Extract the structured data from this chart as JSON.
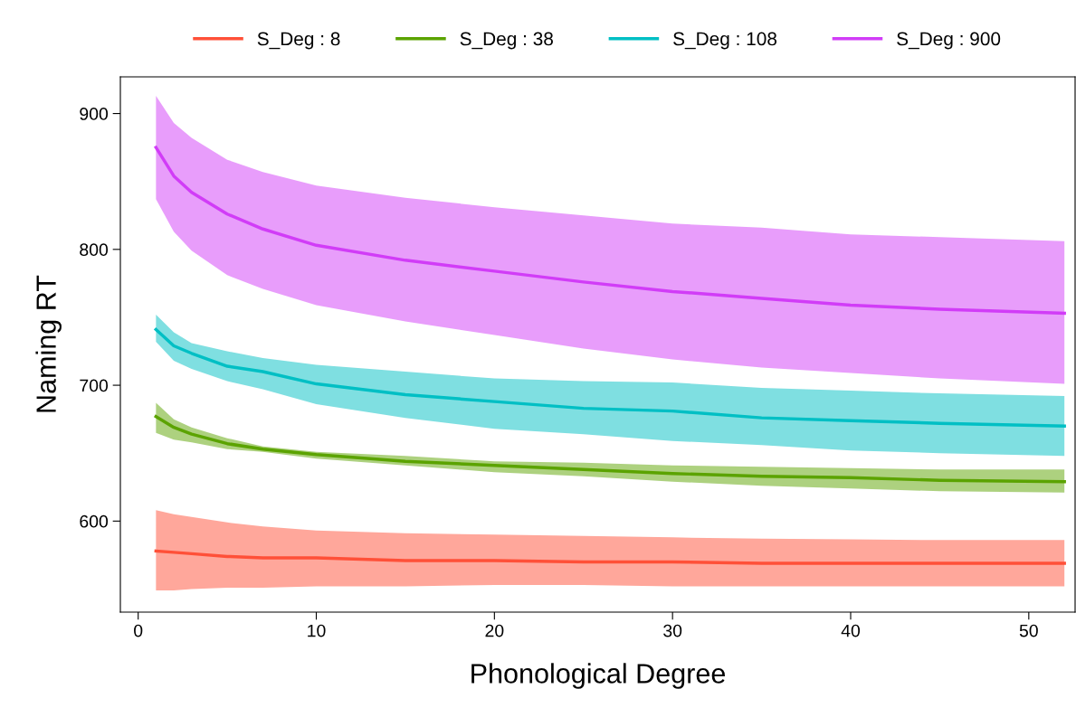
{
  "chart_data": {
    "type": "line",
    "xlabel": "Phonological Degree",
    "ylabel": "Naming RT",
    "x": [
      1,
      2,
      3,
      5,
      7,
      10,
      15,
      20,
      25,
      30,
      35,
      40,
      45,
      52
    ],
    "series": [
      {
        "name": "S_Deg : 8",
        "color": "#ff5038",
        "values": [
          578,
          577,
          576,
          574,
          573,
          573,
          571,
          571,
          570,
          570,
          569,
          569,
          569,
          569
        ],
        "upper": [
          608,
          605,
          603,
          599,
          596,
          593,
          591,
          590,
          589,
          588,
          587,
          586.5,
          586,
          586
        ],
        "lower": [
          549,
          549,
          550,
          551,
          551,
          552,
          552,
          553,
          553,
          552,
          552,
          552,
          552,
          552
        ]
      },
      {
        "name": "S_Deg : 38",
        "color": "#5ba300",
        "values": [
          677,
          669,
          664,
          657,
          653,
          649,
          644,
          641,
          638,
          635,
          633,
          632,
          630,
          629
        ],
        "upper": [
          687,
          675,
          669,
          661,
          655,
          651,
          648,
          644,
          643,
          641,
          640,
          639,
          638,
          638
        ],
        "lower": [
          665,
          660,
          658,
          653,
          651,
          646,
          641,
          636,
          633,
          629,
          626,
          624,
          622,
          621
        ]
      },
      {
        "name": "S_Deg : 108",
        "color": "#00bfc4",
        "values": [
          741,
          729,
          723.5,
          714,
          710,
          701,
          693,
          688,
          683,
          681,
          676,
          674,
          672,
          670
        ],
        "upper": [
          752,
          739,
          731,
          725,
          720,
          715,
          710,
          705,
          703,
          702,
          698,
          696,
          694,
          692
        ],
        "lower": [
          732,
          718,
          712,
          703,
          697,
          686,
          676,
          668,
          664,
          659,
          656,
          652,
          650,
          648
        ]
      },
      {
        "name": "S_Deg : 900",
        "color": "#d13cf7",
        "values": [
          875,
          854,
          842,
          826,
          815,
          803,
          792,
          784,
          776,
          769,
          764,
          759,
          756,
          753
        ],
        "upper": [
          913,
          893,
          882,
          866,
          857,
          847,
          838,
          831,
          825,
          819,
          816,
          811,
          809,
          806
        ],
        "lower": [
          837,
          813,
          799,
          781,
          771,
          759,
          747,
          737,
          727,
          719,
          713,
          709,
          705,
          701
        ]
      }
    ],
    "xlim": [
      -1.0,
      52.6
    ],
    "ylim": [
      533,
      927
    ],
    "xticks": [
      0,
      10,
      20,
      30,
      40,
      50
    ],
    "yticks": [
      600,
      700,
      800,
      900
    ],
    "grid": false,
    "legend": "top",
    "marker": "none",
    "line_style": "solid"
  }
}
